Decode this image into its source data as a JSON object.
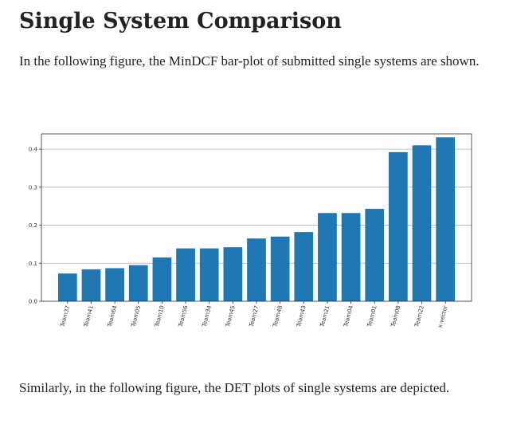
{
  "page": {
    "title": "Single System Comparison",
    "intro_text": "In the following figure, the MinDCF bar-plot of submitted single systems are shown.",
    "outro_text": "Similarly, in the following figure, the DET plots of single systems are depicted."
  },
  "chart_data": {
    "type": "bar",
    "title": "",
    "xlabel": "",
    "ylabel": "",
    "categories": [
      "Team37",
      "Team41",
      "Team64",
      "Team05",
      "Team10",
      "Team56",
      "Team34",
      "Team45",
      "Team27",
      "Team48",
      "Team43",
      "Team21",
      "Team04",
      "Team01",
      "Team08",
      "Team22",
      "x-vector"
    ],
    "values": [
      0.073,
      0.084,
      0.087,
      0.095,
      0.115,
      0.139,
      0.139,
      0.142,
      0.165,
      0.17,
      0.182,
      0.232,
      0.232,
      0.243,
      0.392,
      0.41,
      0.431
    ],
    "ylim": [
      0,
      0.44
    ],
    "yticks": [
      0.0,
      0.1,
      0.2,
      0.3,
      0.4
    ],
    "ytick_labels": [
      "0.0",
      "0.1",
      "0.2",
      "0.3",
      "0.4"
    ],
    "grid": "horizontal",
    "legend": "none",
    "bar_color": "#1f77b4"
  }
}
